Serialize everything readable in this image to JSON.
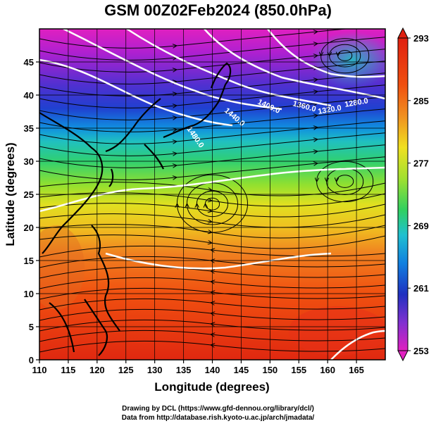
{
  "title": "GSM 00Z02Feb2024 (850.0hPa)",
  "map": {
    "type": "heatmap",
    "x_axis": {
      "label": "Longitude (degrees)",
      "range": [
        110,
        170
      ],
      "ticks": [
        110,
        115,
        120,
        125,
        130,
        135,
        140,
        145,
        150,
        155,
        160,
        165
      ]
    },
    "y_axis": {
      "label": "Latitude  (degrees)",
      "range": [
        0,
        50
      ],
      "ticks": [
        0,
        5,
        10,
        15,
        20,
        25,
        30,
        35,
        40,
        45
      ]
    },
    "grid": true,
    "colorbar": {
      "min": 253,
      "max": 293,
      "ticks": [
        253,
        261,
        269,
        277,
        285,
        293
      ],
      "colors": [
        "#e020c0",
        "#8030d0",
        "#2030c0",
        "#1080e0",
        "#20c0d0",
        "#30d060",
        "#a0e030",
        "#f0e020",
        "#f09020",
        "#f04010",
        "#e02010"
      ]
    },
    "contour_labels": [
      "1480.0",
      "1440.0",
      "1400.0",
      "1360.0",
      "1320.0",
      "1280.0"
    ],
    "overlays": [
      "streamlines",
      "geopotential-contours",
      "coastlines"
    ]
  },
  "credits": {
    "line1": "Drawing by DCL (https://www.gfd-dennou.org/library/dcl/)",
    "line2": "Data from http://database.rish.kyoto-u.ac.jp/arch/jmadata/"
  }
}
